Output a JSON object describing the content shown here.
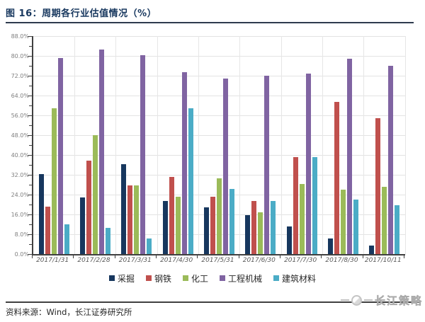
{
  "header": {
    "title": "图 16：周期各行业估值情况（%）"
  },
  "footer": {
    "source": "资料来源：Wind，长江证券研究所",
    "logo_text": "长江策略"
  },
  "colors": {
    "title": "#17375E",
    "axis": "#404040",
    "gridline": "#E3E3E3",
    "ytick_label": "#7F7F7F",
    "xtick_label": "#595959"
  },
  "chart_data": {
    "type": "bar",
    "title": "周期各行业估值情况（%）",
    "categories": [
      "2017/1/31",
      "2017/2/28",
      "2017/3/31",
      "2017/4/30",
      "2017/5/31",
      "2017/6/30",
      "2017/7/30",
      "2017/8/30",
      "2017/10/11"
    ],
    "series": [
      {
        "name": "采掘",
        "color": "#17375E",
        "values": [
          32.3,
          22.8,
          36.4,
          21.3,
          18.8,
          15.6,
          11.2,
          6.2,
          3.4
        ]
      },
      {
        "name": "钢铁",
        "color": "#C0504D",
        "values": [
          19.2,
          37.8,
          27.8,
          31.1,
          23.3,
          21.4,
          39.1,
          61.4,
          54.8
        ]
      },
      {
        "name": "化工",
        "color": "#9BBB59",
        "values": [
          58.8,
          48.1,
          27.8,
          23.3,
          30.7,
          16.9,
          28.3,
          26.1,
          27.3
        ]
      },
      {
        "name": "工程机械",
        "color": "#8064A2",
        "values": [
          79.2,
          82.7,
          80.2,
          73.5,
          70.8,
          72.1,
          72.8,
          78.8,
          76.0
        ]
      },
      {
        "name": "建筑材料",
        "color": "#4BACC6",
        "values": [
          12.1,
          10.7,
          6.2,
          58.8,
          26.3,
          21.3,
          39.2,
          22.0,
          19.7
        ]
      }
    ],
    "xlabel": "",
    "ylabel": "",
    "ylim": [
      0,
      88
    ],
    "ytick_step": 8,
    "ytick_minor_step": 4,
    "ytick_format": "0.0%",
    "grid": true,
    "legend_position": "bottom"
  }
}
